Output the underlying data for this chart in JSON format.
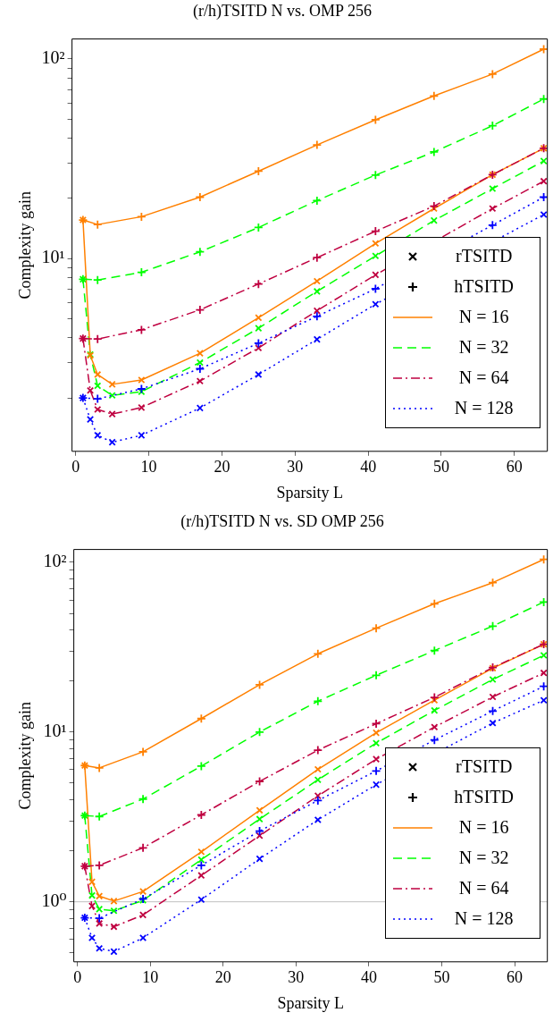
{
  "chart_data": [
    {
      "type": "line",
      "title": "(r/h)TSITD N vs. OMP 256",
      "xlabel": "Sparsity L",
      "ylabel": "Complexity gain",
      "log": "y",
      "grid": false,
      "legend": "bottom right",
      "xlim": [
        -0.5,
        64.5
      ],
      "xticks": [
        0,
        10,
        20,
        30,
        40,
        50,
        60
      ],
      "ylim": [
        1.08,
        126
      ],
      "yticks": [
        {
          "value": 2,
          "label": null
        },
        {
          "value": 3,
          "label": null
        },
        {
          "value": 4,
          "label": null
        },
        {
          "value": 5,
          "label": null
        },
        {
          "value": 6,
          "label": null
        },
        {
          "value": 7,
          "label": null
        },
        {
          "value": 8,
          "label": null
        },
        {
          "value": 9,
          "label": null
        },
        {
          "value": 10,
          "label": "10¹"
        },
        {
          "value": 20,
          "label": null
        },
        {
          "value": 30,
          "label": null
        },
        {
          "value": 40,
          "label": null
        },
        {
          "value": 50,
          "label": null
        },
        {
          "value": 60,
          "label": null
        },
        {
          "value": 70,
          "label": null
        },
        {
          "value": 80,
          "label": null
        },
        {
          "value": 90,
          "label": null
        },
        {
          "value": 100,
          "label": "10²"
        }
      ],
      "series": [
        {
          "name": "rTSITD",
          "type": "scatter",
          "color": "#000000",
          "marker": "x"
        },
        {
          "name": "hTSITD",
          "type": "scatter",
          "color": "#000000",
          "marker": "cross"
        },
        {
          "name": "N = 16",
          "color": "#ff8000",
          "marker": "cross",
          "line_style": "solid",
          "x": [
            1,
            3,
            9,
            17,
            25,
            33,
            41,
            49,
            57,
            64
          ],
          "values": [
            15.6,
            14.8,
            16.2,
            20.3,
            27.4,
            37.1,
            49.6,
            65.3,
            84,
            112
          ]
        },
        {
          "name": "N = 32",
          "color": "#00ff00",
          "marker": "cross",
          "line_style": "dashed",
          "x": [
            1,
            3,
            9,
            17,
            25,
            33,
            41,
            49,
            57,
            64
          ],
          "values": [
            7.87,
            7.8,
            8.53,
            10.8,
            14.3,
            19.5,
            26.2,
            34.2,
            46.3,
            63
          ]
        },
        {
          "name": "N = 64",
          "color": "#bf0040",
          "marker": "cross",
          "line_style": "dashdot",
          "x": [
            1,
            3,
            9,
            17,
            25,
            33,
            41,
            49,
            57,
            64
          ],
          "values": [
            3.97,
            3.95,
            4.39,
            5.53,
            7.45,
            10.1,
            13.7,
            18.3,
            26.3,
            35.7
          ]
        },
        {
          "name": "N = 128",
          "color": "#0000ff",
          "marker": "cross",
          "line_style": "dotted",
          "x": [
            1,
            3,
            9,
            17,
            25,
            33,
            41,
            49,
            57,
            64
          ],
          "values": [
            2.0,
            1.98,
            2.22,
            2.8,
            3.76,
            5.13,
            7.05,
            null,
            14.7,
            20.3
          ]
        },
        {
          "color": "#ff8000",
          "marker": "x",
          "line_style": "solid",
          "x": [
            1,
            2,
            3,
            5,
            9,
            17,
            25,
            33,
            41,
            49,
            57,
            64
          ],
          "values": [
            15.6,
            3.27,
            2.62,
            2.34,
            2.46,
            3.35,
            5.05,
            7.7,
            11.9,
            17.8,
            26.3,
            35.7
          ]
        },
        {
          "color": "#00ff00",
          "marker": "x",
          "line_style": "dashed",
          "x": [
            1,
            2,
            3,
            5,
            9,
            17,
            25,
            33,
            41,
            49,
            57,
            64
          ],
          "values": [
            7.87,
            3.3,
            2.3,
            2.06,
            2.15,
            3.01,
            4.47,
            6.84,
            10.3,
            15.5,
            22.4,
            30.8
          ]
        },
        {
          "color": "#bf0040",
          "marker": "x",
          "line_style": "dashdot",
          "x": [
            1,
            2,
            3,
            5,
            9,
            17,
            25,
            33,
            41,
            49,
            57,
            64
          ],
          "values": [
            3.97,
            2.18,
            1.75,
            1.66,
            1.79,
            2.43,
            3.56,
            5.47,
            8.28,
            null,
            17.8,
            24.4
          ]
        },
        {
          "color": "#0000ff",
          "marker": "x",
          "line_style": "dotted",
          "x": [
            1,
            2,
            3,
            5,
            9,
            17,
            25,
            33,
            41,
            49,
            57,
            64
          ],
          "values": [
            2.0,
            1.56,
            1.3,
            1.2,
            1.3,
            1.78,
            2.62,
            3.93,
            5.9,
            null,
            null,
            16.6
          ]
        }
      ]
    },
    {
      "type": "line",
      "title": "(r/h)TSITD N vs. SD OMP 256",
      "xlabel": "Sparsity L",
      "ylabel": "Complexity gain",
      "log": "y",
      "grid": false,
      "legend": "bottom right",
      "xlim": [
        -0.5,
        64.5
      ],
      "xticks": [
        0,
        10,
        20,
        30,
        40,
        50,
        60
      ],
      "ylim": [
        0.443,
        119
      ],
      "yticks": [
        {
          "value": 0.5,
          "label": null
        },
        {
          "value": 0.6,
          "label": null
        },
        {
          "value": 0.7,
          "label": null
        },
        {
          "value": 0.8,
          "label": null
        },
        {
          "value": 0.9,
          "label": null
        },
        {
          "value": 1,
          "label": "10⁰"
        },
        {
          "value": 2,
          "label": null
        },
        {
          "value": 3,
          "label": null
        },
        {
          "value": 4,
          "label": null
        },
        {
          "value": 5,
          "label": null
        },
        {
          "value": 6,
          "label": null
        },
        {
          "value": 7,
          "label": null
        },
        {
          "value": 8,
          "label": null
        },
        {
          "value": 9,
          "label": null
        },
        {
          "value": 10,
          "label": "10¹"
        },
        {
          "value": 20,
          "label": null
        },
        {
          "value": 30,
          "label": null
        },
        {
          "value": 40,
          "label": null
        },
        {
          "value": 50,
          "label": null
        },
        {
          "value": 60,
          "label": null
        },
        {
          "value": 70,
          "label": null
        },
        {
          "value": 80,
          "label": null
        },
        {
          "value": 90,
          "label": null
        },
        {
          "value": 100,
          "label": "10²"
        }
      ],
      "ref_lines": [
        {
          "axis": "y",
          "value": 1,
          "color": "#c0c0c0"
        }
      ],
      "series": [
        {
          "name": "rTSITD",
          "type": "scatter",
          "color": "#000000",
          "marker": "x"
        },
        {
          "name": "hTSITD",
          "type": "scatter",
          "color": "#000000",
          "marker": "cross"
        },
        {
          "name": "N = 16",
          "color": "#ff8000",
          "marker": "cross",
          "line_style": "solid",
          "x": [
            1,
            3,
            9,
            17,
            25,
            33,
            41,
            49,
            57,
            64
          ],
          "values": [
            6.35,
            6.15,
            7.65,
            12.0,
            19.0,
            28.9,
            40.9,
            57,
            75.9,
            104
          ]
        },
        {
          "name": "N = 32",
          "color": "#00ff00",
          "marker": "cross",
          "line_style": "dashed",
          "x": [
            1,
            3,
            9,
            17,
            25,
            33,
            41,
            49,
            57,
            64
          ],
          "values": [
            3.22,
            3.18,
            4.03,
            6.3,
            10.0,
            15.2,
            21.6,
            30.2,
            42.1,
            58.3
          ]
        },
        {
          "name": "N = 64",
          "color": "#bf0040",
          "marker": "cross",
          "line_style": "dashdot",
          "x": [
            1,
            3,
            9,
            17,
            25,
            33,
            41,
            49,
            57,
            64
          ],
          "values": [
            1.62,
            1.64,
            2.08,
            3.25,
            5.12,
            7.82,
            11.2,
            16.0,
            24.0,
            32.9
          ]
        },
        {
          "name": "N = 128",
          "color": "#0000ff",
          "marker": "cross",
          "line_style": "dotted",
          "x": [
            1,
            3,
            9,
            17,
            25,
            33,
            41,
            49,
            57,
            64
          ],
          "values": [
            0.805,
            0.8,
            1.04,
            1.64,
            2.61,
            3.95,
            5.9,
            8.98,
            13.3,
            18.6
          ]
        },
        {
          "color": "#ff8000",
          "marker": "x",
          "line_style": "solid",
          "x": [
            1,
            2,
            3,
            5,
            9,
            17,
            25,
            33,
            41,
            49,
            57,
            64
          ],
          "values": [
            6.35,
            1.31,
            1.08,
            1.01,
            1.15,
            1.97,
            3.46,
            6.03,
            9.9,
            15.4,
            23.8,
            32.9
          ]
        },
        {
          "color": "#00ff00",
          "marker": "x",
          "line_style": "dashed",
          "x": [
            1,
            2,
            3,
            5,
            9,
            17,
            25,
            33,
            41,
            49,
            57,
            64
          ],
          "values": [
            3.22,
            1.09,
            0.905,
            0.885,
            1.02,
            1.77,
            3.07,
            5.23,
            8.6,
            13.4,
            20.4,
            28.3
          ]
        },
        {
          "color": "#bf0040",
          "marker": "x",
          "line_style": "dashdot",
          "x": [
            1,
            2,
            3,
            5,
            9,
            17,
            25,
            33,
            41,
            49,
            57,
            64
          ],
          "values": [
            1.62,
            0.945,
            0.745,
            0.713,
            0.837,
            1.43,
            2.45,
            4.21,
            6.92,
            10.7,
            16.1,
            22.3
          ]
        },
        {
          "color": "#0000ff",
          "marker": "x",
          "line_style": "dotted",
          "x": [
            1,
            2,
            3,
            5,
            9,
            17,
            25,
            33,
            41,
            49,
            57,
            64
          ],
          "values": [
            0.805,
            0.613,
            0.532,
            0.509,
            0.613,
            1.03,
            1.79,
            3.04,
            4.9,
            null,
            11.3,
            15.4
          ]
        }
      ]
    }
  ]
}
